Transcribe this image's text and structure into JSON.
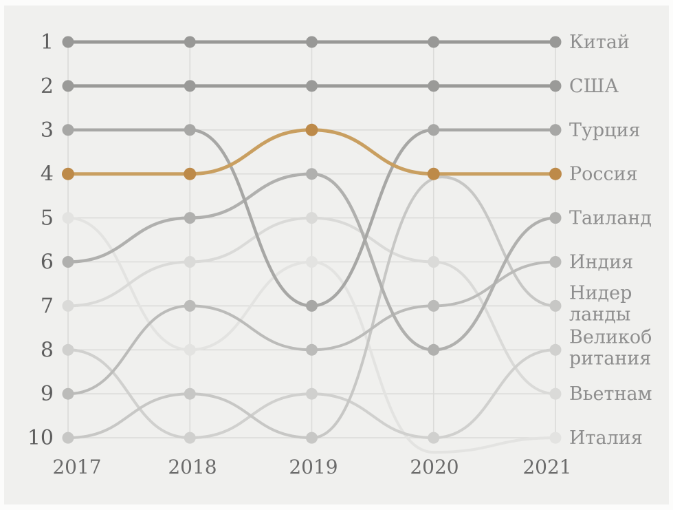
{
  "chart_data": {
    "type": "bump",
    "description": "Rank bump chart, ranks 1-10 on y-axis, years on x-axis, country labels in Russian on right; Russia highlighted in orange",
    "years": [
      2017,
      2018,
      2019,
      2020,
      2021
    ],
    "rank_axis": [
      1,
      2,
      3,
      4,
      5,
      6,
      7,
      8,
      9,
      10
    ],
    "ylim": [
      1,
      10
    ],
    "grid": "on",
    "legend_position": "right-of-lines",
    "background_color": "#f0f0ee",
    "gridline_color": "#dbdbd9",
    "highlight_color": "#c99f60",
    "series": [
      {
        "id": "italy",
        "name": "Италия",
        "label_lines": [
          "Италия"
        ],
        "ranks": [
          5,
          8,
          6,
          null,
          10
        ],
        "off_chart_waypoints": [
          [
            2020.0,
            10.33
          ]
        ],
        "color": "#e3e3e1",
        "width": 4
      },
      {
        "id": "vietnam",
        "name": "Вьетнам",
        "label_lines": [
          "Вьетнам"
        ],
        "ranks": [
          7,
          6,
          5,
          6,
          9
        ],
        "color": "#dadad8",
        "width": 4
      },
      {
        "id": "uk",
        "name": "Великобритания",
        "label_lines": [
          "Великоб",
          "ритания"
        ],
        "ranks": [
          8,
          10,
          9,
          10,
          8
        ],
        "color": "#d0d0ce",
        "width": 4
      },
      {
        "id": "netherlands",
        "name": "Нидерланды",
        "label_lines": [
          "Нидер",
          "ланды"
        ],
        "ranks": [
          10,
          9,
          10,
          null,
          7
        ],
        "off_chart_waypoints": [
          [
            2020.07,
            4.07
          ]
        ],
        "color": "#c7c7c5",
        "width": 4
      },
      {
        "id": "india",
        "name": "Индия",
        "label_lines": [
          "Индия"
        ],
        "ranks": [
          9,
          7,
          8,
          7,
          6
        ],
        "color": "#bbbbb9",
        "width": 4
      },
      {
        "id": "thailand",
        "name": "Таиланд",
        "label_lines": [
          "Таиланд"
        ],
        "ranks": [
          6,
          5,
          4,
          8,
          5
        ],
        "color": "#b0b0ae",
        "width": 4.5
      },
      {
        "id": "turkey",
        "name": "Турция",
        "label_lines": [
          "Турция"
        ],
        "ranks": [
          3,
          3,
          7,
          3,
          3
        ],
        "color": "#a7a7a5",
        "width": 4.5
      },
      {
        "id": "usa",
        "name": "США",
        "label_lines": [
          "США"
        ],
        "ranks": [
          2,
          2,
          2,
          2,
          2
        ],
        "color": "#9a9a98",
        "width": 5
      },
      {
        "id": "china",
        "name": "Китай",
        "label_lines": [
          "Китай"
        ],
        "ranks": [
          1,
          1,
          1,
          1,
          1
        ],
        "color": "#989896",
        "width": 5
      },
      {
        "id": "russia",
        "name": "Россия",
        "label_lines": [
          "Россия"
        ],
        "ranks": [
          4,
          4,
          3,
          4,
          4
        ],
        "color": "#c99f60",
        "dot_color": "#bd8a49",
        "width": 5,
        "highlight": true
      }
    ]
  }
}
